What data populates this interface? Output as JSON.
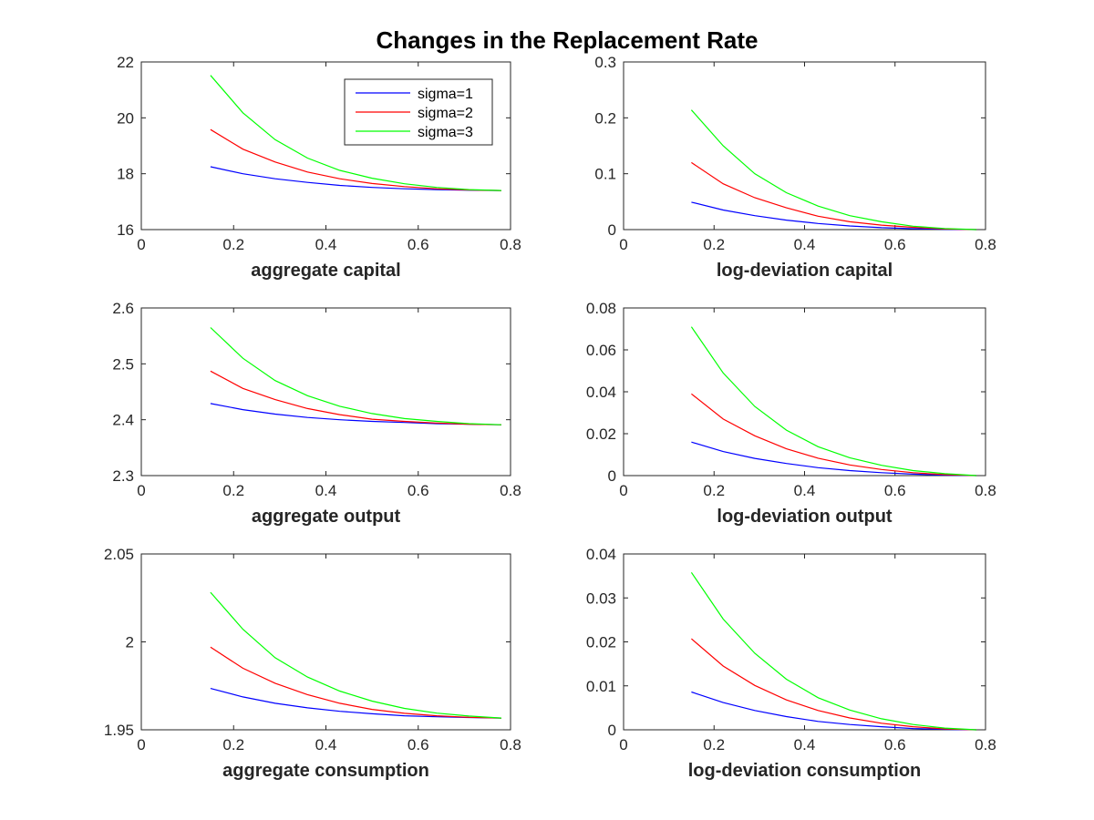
{
  "figure": {
    "title": "Changes in the Replacement Rate",
    "colors": {
      "sigma1": "#0000ff",
      "sigma2": "#ff0000",
      "sigma3": "#00ff00",
      "axis": "#262626"
    }
  },
  "chart_data": [
    {
      "type": "line",
      "title": "",
      "xlabel": "aggregate capital",
      "ylabel": "",
      "xlim": [
        0,
        0.8
      ],
      "ylim": [
        16,
        22
      ],
      "xticks": [
        "0",
        "0.2",
        "0.4",
        "0.6",
        "0.8"
      ],
      "yticks": [
        "16",
        "18",
        "20",
        "22"
      ],
      "legend": {
        "placement": "top-right",
        "entries": [
          "sigma=1",
          "sigma=2",
          "sigma=3"
        ]
      },
      "x": [
        0.15,
        0.22,
        0.29,
        0.36,
        0.43,
        0.5,
        0.57,
        0.64,
        0.71,
        0.78
      ],
      "series": [
        {
          "name": "sigma=1",
          "color": "#0000ff",
          "values": [
            18.25,
            18.0,
            17.82,
            17.69,
            17.58,
            17.51,
            17.46,
            17.43,
            17.41,
            17.4
          ]
        },
        {
          "name": "sigma=2",
          "color": "#ff0000",
          "values": [
            19.58,
            18.88,
            18.42,
            18.06,
            17.82,
            17.65,
            17.54,
            17.46,
            17.42,
            17.4
          ]
        },
        {
          "name": "sigma=3",
          "color": "#00ff00",
          "values": [
            21.52,
            20.18,
            19.22,
            18.56,
            18.12,
            17.84,
            17.64,
            17.51,
            17.43,
            17.4
          ]
        }
      ]
    },
    {
      "type": "line",
      "title": "",
      "xlabel": "log-deviation capital",
      "ylabel": "",
      "xlim": [
        0,
        0.8
      ],
      "ylim": [
        0,
        0.3
      ],
      "xticks": [
        "0",
        "0.2",
        "0.4",
        "0.6",
        "0.8"
      ],
      "yticks": [
        "0",
        "0.1",
        "0.2",
        "0.3"
      ],
      "x": [
        0.15,
        0.22,
        0.29,
        0.36,
        0.43,
        0.5,
        0.57,
        0.64,
        0.71,
        0.78
      ],
      "series": [
        {
          "name": "",
          "color": "#0000ff",
          "values": [
            0.049,
            0.035,
            0.025,
            0.017,
            0.011,
            0.0065,
            0.0035,
            0.0017,
            0.0006,
            0.0
          ]
        },
        {
          "name": "",
          "color": "#ff0000",
          "values": [
            0.12,
            0.082,
            0.057,
            0.039,
            0.024,
            0.014,
            0.008,
            0.004,
            0.0012,
            0.0
          ]
        },
        {
          "name": "",
          "color": "#00ff00",
          "values": [
            0.214,
            0.15,
            0.1,
            0.066,
            0.042,
            0.025,
            0.014,
            0.006,
            0.002,
            0.0
          ]
        }
      ]
    },
    {
      "type": "line",
      "title": "",
      "xlabel": "aggregate output",
      "ylabel": "",
      "xlim": [
        0,
        0.8
      ],
      "ylim": [
        2.3,
        2.6
      ],
      "xticks": [
        "0",
        "0.2",
        "0.4",
        "0.6",
        "0.8"
      ],
      "yticks": [
        "2.3",
        "2.4",
        "2.5",
        "2.6"
      ],
      "x": [
        0.15,
        0.22,
        0.29,
        0.36,
        0.43,
        0.5,
        0.57,
        0.64,
        0.71,
        0.78
      ],
      "series": [
        {
          "name": "",
          "color": "#0000ff",
          "values": [
            2.429,
            2.418,
            2.41,
            2.404,
            2.4,
            2.397,
            2.395,
            2.393,
            2.392,
            2.391
          ]
        },
        {
          "name": "",
          "color": "#ff0000",
          "values": [
            2.487,
            2.456,
            2.436,
            2.42,
            2.409,
            2.401,
            2.397,
            2.394,
            2.392,
            2.391
          ]
        },
        {
          "name": "",
          "color": "#00ff00",
          "values": [
            2.565,
            2.51,
            2.47,
            2.443,
            2.424,
            2.411,
            2.402,
            2.397,
            2.393,
            2.391
          ]
        }
      ]
    },
    {
      "type": "line",
      "title": "",
      "xlabel": "log-deviation output",
      "ylabel": "",
      "xlim": [
        0,
        0.8
      ],
      "ylim": [
        0,
        0.08
      ],
      "xticks": [
        "0",
        "0.2",
        "0.4",
        "0.6",
        "0.8"
      ],
      "yticks": [
        "0",
        "0.02",
        "0.04",
        "0.06",
        "0.08"
      ],
      "x": [
        0.15,
        0.22,
        0.29,
        0.36,
        0.43,
        0.5,
        0.57,
        0.64,
        0.71,
        0.78
      ],
      "series": [
        {
          "name": "",
          "color": "#0000ff",
          "values": [
            0.016,
            0.0115,
            0.0082,
            0.0058,
            0.0038,
            0.0024,
            0.0014,
            0.0007,
            0.0002,
            0.0
          ]
        },
        {
          "name": "",
          "color": "#ff0000",
          "values": [
            0.039,
            0.027,
            0.019,
            0.0128,
            0.0083,
            0.0051,
            0.0029,
            0.0014,
            0.0005,
            0.0
          ]
        },
        {
          "name": "",
          "color": "#00ff00",
          "values": [
            0.071,
            0.049,
            0.033,
            0.0217,
            0.0138,
            0.0085,
            0.0049,
            0.0024,
            0.0009,
            0.0
          ]
        }
      ]
    },
    {
      "type": "line",
      "title": "",
      "xlabel": "aggregate consumption",
      "ylabel": "",
      "xlim": [
        0,
        0.8
      ],
      "ylim": [
        1.95,
        2.05
      ],
      "xticks": [
        "0",
        "0.2",
        "0.4",
        "0.6",
        "0.8"
      ],
      "yticks": [
        "1.95",
        "2",
        "2.05"
      ],
      "x": [
        0.15,
        0.22,
        0.29,
        0.36,
        0.43,
        0.5,
        0.57,
        0.64,
        0.71,
        0.78
      ],
      "series": [
        {
          "name": "",
          "color": "#0000ff",
          "values": [
            1.9735,
            1.9687,
            1.9651,
            1.9625,
            1.9605,
            1.9591,
            1.958,
            1.9574,
            1.957,
            1.9567
          ]
        },
        {
          "name": "",
          "color": "#ff0000",
          "values": [
            1.997,
            1.985,
            1.9765,
            1.97,
            1.9651,
            1.9616,
            1.9594,
            1.958,
            1.9571,
            1.9567
          ]
        },
        {
          "name": "",
          "color": "#00ff00",
          "values": [
            2.0282,
            2.0072,
            1.991,
            1.98,
            1.972,
            1.9663,
            1.9622,
            1.9595,
            1.9578,
            1.9567
          ]
        }
      ]
    },
    {
      "type": "line",
      "title": "",
      "xlabel": "log-deviation consumption",
      "ylabel": "",
      "xlim": [
        0,
        0.8
      ],
      "ylim": [
        0,
        0.04
      ],
      "xticks": [
        "0",
        "0.2",
        "0.4",
        "0.6",
        "0.8"
      ],
      "yticks": [
        "0",
        "0.01",
        "0.02",
        "0.03",
        "0.04"
      ],
      "x": [
        0.15,
        0.22,
        0.29,
        0.36,
        0.43,
        0.5,
        0.57,
        0.64,
        0.71,
        0.78
      ],
      "series": [
        {
          "name": "",
          "color": "#0000ff",
          "values": [
            0.0086,
            0.0062,
            0.0044,
            0.003,
            0.0019,
            0.0012,
            0.0007,
            0.0003,
            0.0001,
            0.0
          ]
        },
        {
          "name": "",
          "color": "#ff0000",
          "values": [
            0.0207,
            0.0145,
            0.0101,
            0.0068,
            0.0044,
            0.0027,
            0.0015,
            0.0007,
            0.0002,
            0.0
          ]
        },
        {
          "name": "",
          "color": "#00ff00",
          "values": [
            0.0358,
            0.0252,
            0.0174,
            0.0115,
            0.0073,
            0.0045,
            0.0025,
            0.0012,
            0.0004,
            0.0
          ]
        }
      ]
    }
  ]
}
